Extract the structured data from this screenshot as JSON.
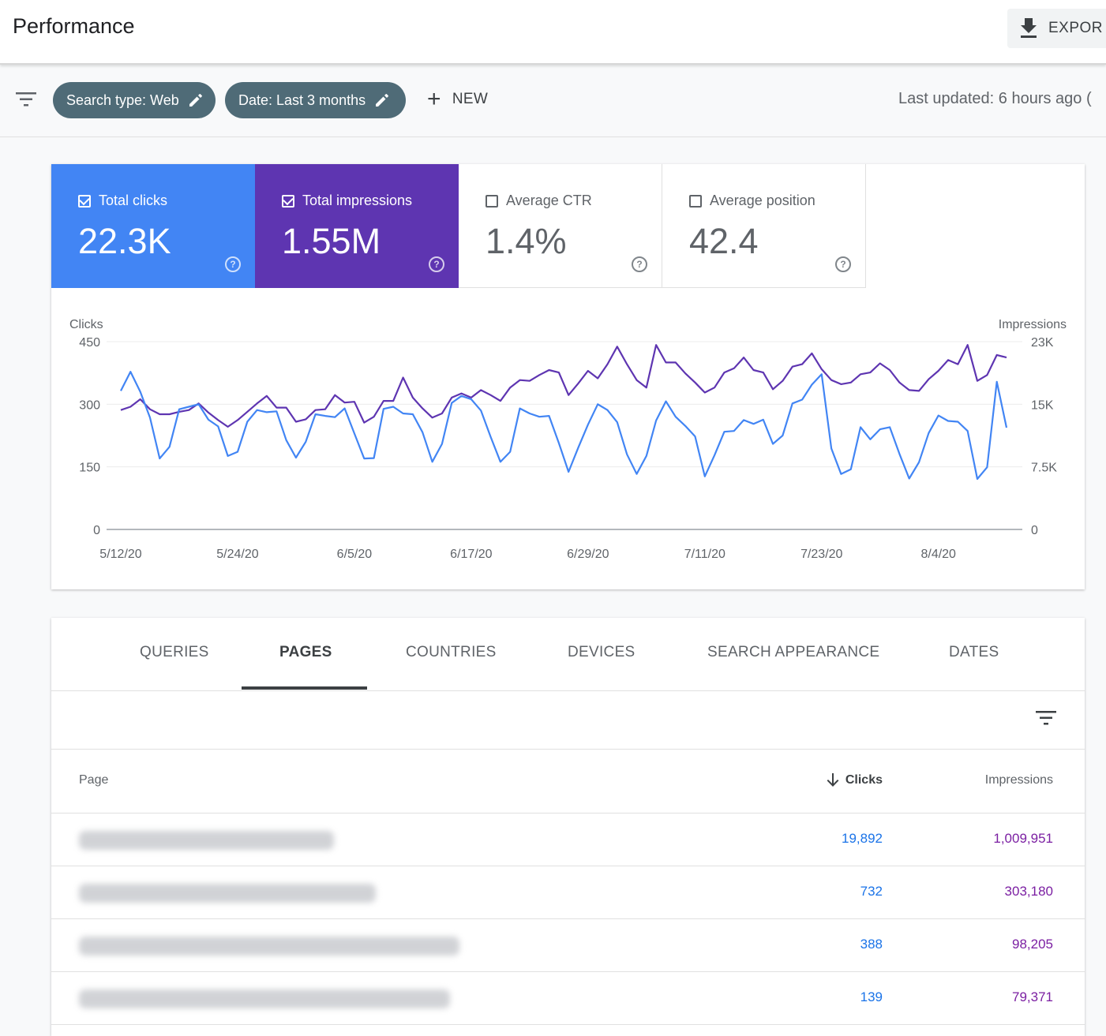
{
  "header": {
    "title": "Performance",
    "export_label": "EXPOR"
  },
  "filters": {
    "chips": [
      {
        "label": "Search type: Web"
      },
      {
        "label": "Date: Last 3 months"
      }
    ],
    "new_label": "NEW",
    "last_updated": "Last updated: 6 hours ago ("
  },
  "metrics": [
    {
      "label": "Total clicks",
      "value": "22.3K",
      "checked": true,
      "color": "#4285f4"
    },
    {
      "label": "Total impressions",
      "value": "1.55M",
      "checked": true,
      "color": "#5e35b1"
    },
    {
      "label": "Average CTR",
      "value": "1.4%",
      "checked": false
    },
    {
      "label": "Average position",
      "value": "42.4",
      "checked": false
    }
  ],
  "chart_data": {
    "type": "line",
    "left_axis": {
      "label": "Clicks",
      "ticks": [
        "450",
        "300",
        "150",
        "0"
      ],
      "range": [
        0,
        450
      ]
    },
    "right_axis": {
      "label": "Impressions",
      "ticks": [
        "23K",
        "15K",
        "7.5K",
        "0"
      ],
      "range": [
        0,
        22500
      ]
    },
    "x_tick_labels": [
      "5/12/20",
      "5/24/20",
      "6/5/20",
      "6/17/20",
      "6/29/20",
      "7/11/20",
      "7/23/20",
      "8/4/20"
    ],
    "x_start": "2020-05-12",
    "x_end": "2020-08-14",
    "grid": true,
    "series": [
      {
        "name": "Clicks",
        "color": "#4285f4",
        "axis": "left",
        "values": [
          332,
          378,
          330,
          268,
          170,
          198,
          288,
          294,
          300,
          263,
          247,
          176,
          186,
          258,
          286,
          281,
          283,
          214,
          172,
          210,
          276,
          272,
          269,
          290,
          230,
          170,
          171,
          289,
          294,
          278,
          276,
          233,
          162,
          205,
          303,
          320,
          312,
          285,
          222,
          162,
          186,
          290,
          278,
          270,
          272,
          207,
          138,
          196,
          251,
          300,
          286,
          257,
          180,
          133,
          176,
          261,
          307,
          270,
          248,
          223,
          127,
          178,
          234,
          236,
          262,
          253,
          263,
          205,
          225,
          302,
          311,
          347,
          372,
          194,
          133,
          144,
          245,
          216,
          240,
          245,
          181,
          122,
          161,
          231,
          273,
          260,
          258,
          236,
          121,
          149,
          354,
          244
        ]
      },
      {
        "name": "Impressions",
        "color": "#5e35b1",
        "axis": "right",
        "values": [
          14300,
          14700,
          15600,
          14400,
          13800,
          13800,
          14100,
          14300,
          15100,
          14000,
          13100,
          12300,
          13100,
          14100,
          15100,
          16000,
          14600,
          14600,
          12900,
          13200,
          14300,
          14400,
          16100,
          15200,
          15300,
          12800,
          13500,
          15400,
          15400,
          18200,
          15800,
          14500,
          13400,
          13900,
          15800,
          16300,
          15800,
          16700,
          16100,
          15400,
          17000,
          17900,
          17800,
          18500,
          19100,
          18800,
          16100,
          17500,
          19000,
          18100,
          19800,
          21900,
          19800,
          17900,
          17000,
          22100,
          20000,
          20000,
          18700,
          17600,
          16400,
          17000,
          18800,
          19300,
          20600,
          19100,
          18800,
          16800,
          17800,
          19500,
          19800,
          21100,
          19200,
          17900,
          17400,
          17600,
          18600,
          18800,
          19900,
          19100,
          17600,
          16700,
          16600,
          18000,
          19000,
          20300,
          19800,
          22100,
          17800,
          18500,
          20900,
          20600
        ]
      }
    ]
  },
  "table": {
    "tabs": [
      "QUERIES",
      "PAGES",
      "COUNTRIES",
      "DEVICES",
      "SEARCH APPEARANCE",
      "DATES"
    ],
    "active_tab": "PAGES",
    "columns": {
      "page": "Page",
      "clicks": "Clicks",
      "impressions": "Impressions"
    },
    "rows": [
      {
        "clicks": "19,892",
        "impressions": "1,009,951"
      },
      {
        "clicks": "732",
        "impressions": "303,180"
      },
      {
        "clicks": "388",
        "impressions": "98,205"
      },
      {
        "clicks": "139",
        "impressions": "79,371"
      }
    ]
  }
}
